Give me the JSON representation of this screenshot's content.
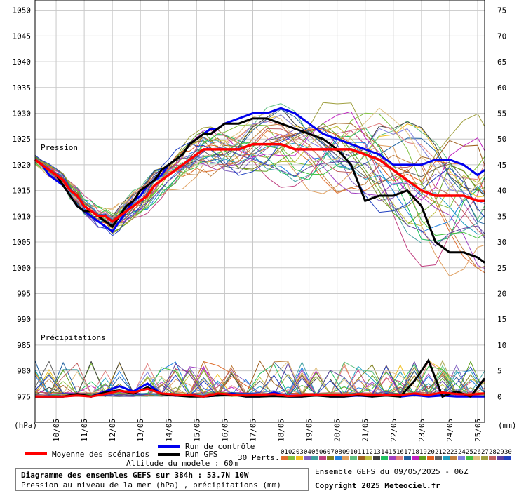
{
  "chart_data": {
    "type": "line",
    "left_axis_unit": "(hPa)",
    "right_axis_unit": "(mm)",
    "pressure_ticks": [
      1050,
      1045,
      1040,
      1035,
      1030,
      1025,
      1020,
      1015,
      1010,
      1005,
      1000,
      995,
      990,
      985,
      980,
      975
    ],
    "precip_ticks": [
      75,
      70,
      65,
      60,
      55,
      50,
      45,
      40,
      35,
      30,
      25,
      20,
      15,
      10,
      5,
      0
    ],
    "ylim_pressure": [
      970,
      1052
    ],
    "ylim_precip": [
      -5,
      77
    ],
    "x_start_day": 9.25,
    "x_end_day": 25.25,
    "x_ticks": [
      "10/05",
      "11/05",
      "12/05",
      "13/05",
      "14/05",
      "15/05",
      "16/05",
      "17/05",
      "18/05",
      "19/05",
      "20/05",
      "21/05",
      "22/05",
      "23/05",
      "24/05",
      "25/05"
    ],
    "label_pression": "Pression",
    "label_precip": "Précipitations",
    "series": [
      {
        "name": "Moyenne des scénarios",
        "color": "#ff0000",
        "x": [
          9.25,
          9.5,
          9.75,
          10,
          10.25,
          10.5,
          10.75,
          11,
          11.25,
          11.5,
          11.75,
          12,
          12.25,
          12.5,
          12.75,
          13,
          13.25,
          13.5,
          13.75,
          14,
          14.25,
          14.5,
          14.75,
          15,
          15.25,
          15.5,
          15.75,
          16,
          16.5,
          17,
          17.5,
          18,
          18.5,
          19,
          19.5,
          20,
          20.5,
          21,
          21.5,
          22,
          22.5,
          23,
          23.5,
          24,
          24.5,
          25,
          25.25
        ],
        "values": [
          1021,
          1020,
          1019,
          1018,
          1017,
          1015,
          1014,
          1012,
          1011,
          1010,
          1010,
          1009,
          1010,
          1011,
          1012,
          1013,
          1014,
          1016,
          1017,
          1018,
          1019,
          1020,
          1021,
          1022,
          1023,
          1023,
          1023,
          1023,
          1023,
          1024,
          1024,
          1024,
          1023,
          1023,
          1023,
          1023,
          1023,
          1022,
          1021,
          1019,
          1017,
          1015,
          1014,
          1014,
          1014,
          1013,
          1013
        ]
      },
      {
        "name": "Run de contrôle",
        "color": "#0000ee",
        "x": [
          9.25,
          9.5,
          9.75,
          10,
          10.25,
          10.5,
          10.75,
          11,
          11.25,
          11.5,
          11.75,
          12,
          12.25,
          12.5,
          12.75,
          13,
          13.25,
          13.5,
          13.75,
          14,
          14.25,
          14.5,
          14.75,
          15,
          15.25,
          15.5,
          15.75,
          16,
          16.5,
          17,
          17.5,
          18,
          18.5,
          19,
          19.5,
          20,
          20.5,
          21,
          21.5,
          22,
          22.5,
          23,
          23.5,
          24,
          24.5,
          25,
          25.25
        ],
        "values": [
          1021,
          1020,
          1018,
          1017,
          1016,
          1014,
          1012,
          1011,
          1010,
          1009,
          1008,
          1007,
          1009,
          1011,
          1013,
          1014,
          1016,
          1017,
          1018,
          1020,
          1021,
          1022,
          1024,
          1025,
          1026,
          1027,
          1027,
          1028,
          1029,
          1030,
          1030,
          1031,
          1030,
          1028,
          1026,
          1025,
          1024,
          1023,
          1022,
          1020,
          1020,
          1020,
          1021,
          1021,
          1020,
          1018,
          1019
        ]
      },
      {
        "name": "Run GFS",
        "color": "#000000",
        "x": [
          9.25,
          9.5,
          9.75,
          10,
          10.25,
          10.5,
          10.75,
          11,
          11.25,
          11.5,
          11.75,
          12,
          12.25,
          12.5,
          12.75,
          13,
          13.25,
          13.5,
          13.75,
          14,
          14.25,
          14.5,
          14.75,
          15,
          15.25,
          15.5,
          15.75,
          16,
          16.5,
          17,
          17.5,
          18,
          18.5,
          19,
          19.5,
          20,
          20.5,
          21,
          21.5,
          22,
          22.5,
          23,
          23.5,
          24,
          24.5,
          25,
          25.25
        ],
        "values": [
          1021,
          1020,
          1019,
          1018,
          1016,
          1014,
          1012,
          1011,
          1011,
          1010,
          1009,
          1008,
          1010,
          1012,
          1013,
          1015,
          1016,
          1017,
          1019,
          1020,
          1021,
          1022,
          1024,
          1025,
          1026,
          1026,
          1027,
          1028,
          1028,
          1029,
          1029,
          1028,
          1027,
          1026,
          1025,
          1023,
          1020,
          1013,
          1014,
          1014,
          1015,
          1012,
          1005,
          1003,
          1003,
          1002,
          1001
        ]
      }
    ],
    "precip_means": {
      "mean": [
        0,
        0,
        0,
        0.2,
        0,
        0.5,
        1.1,
        0.8,
        1.5,
        0.6,
        0.4,
        0.3,
        0,
        0.6,
        0.4,
        0.2,
        0.3,
        0.5,
        0.1,
        0.2,
        0.4,
        0.3,
        0.2,
        0.5,
        0.3,
        0.4,
        0.3,
        0.6,
        0.3,
        0.8,
        0.5,
        0.4,
        0.6
      ],
      "control": [
        0,
        0,
        0,
        0.3,
        0,
        1,
        2,
        1,
        2.5,
        0.5,
        0.2,
        0.4,
        0,
        0.2,
        0.6,
        0,
        0,
        0.8,
        0,
        0,
        0.3,
        0,
        0,
        0.2,
        0,
        0.5,
        0,
        0.3,
        0,
        0.2,
        0,
        0,
        0
      ],
      "gfs": [
        0,
        0,
        0,
        0.5,
        0,
        0.8,
        1.2,
        0.6,
        1.8,
        0.5,
        0.2,
        0,
        0,
        0.2,
        0.4,
        0,
        0,
        0.1,
        0,
        0,
        0.2,
        0,
        0,
        0.3,
        0,
        0.2,
        0,
        3,
        7,
        0,
        1,
        0,
        3.5
      ]
    },
    "member_colors": [
      "#e07030",
      "#80c040",
      "#f0c020",
      "#8060c0",
      "#40a0a0",
      "#c04080",
      "#808020",
      "#2080e0",
      "#e0a060",
      "#60c080",
      "#a06020",
      "#c0c040",
      "#404040",
      "#20c060",
      "#a040c0",
      "#e08080",
      "#2060a0",
      "#c020c0",
      "#60a020",
      "#e06020",
      "#606060",
      "#20a0c0",
      "#c08040",
      "#8080e0",
      "#40c040",
      "#e0c080",
      "#a0a040",
      "#c06060",
      "#6040a0",
      "#2040c0"
    ],
    "member_labels": [
      "01",
      "02",
      "03",
      "04",
      "05",
      "06",
      "07",
      "08",
      "09",
      "10",
      "11",
      "12",
      "13",
      "14",
      "15",
      "16",
      "17",
      "18",
      "19",
      "20",
      "21",
      "22",
      "23",
      "24",
      "25",
      "26",
      "27",
      "28",
      "29",
      "30"
    ]
  },
  "legend": {
    "mean": "Moyenne des scénarios",
    "control": "Run de contrôle",
    "gfs": "Run GFS",
    "perts": "30 Perts.",
    "altitude": "Altitude du modele : 60m"
  },
  "footer": {
    "title": "Diagramme des ensembles GEFS sur 384h : 53.7N 10W",
    "subtitle": "Pression au niveau de la mer (hPa) , précipitations (mm)",
    "run_info": "Ensemble GEFS du 09/05/2025 - 06Z",
    "copyright": "Copyright 2025 Meteociel.fr"
  }
}
